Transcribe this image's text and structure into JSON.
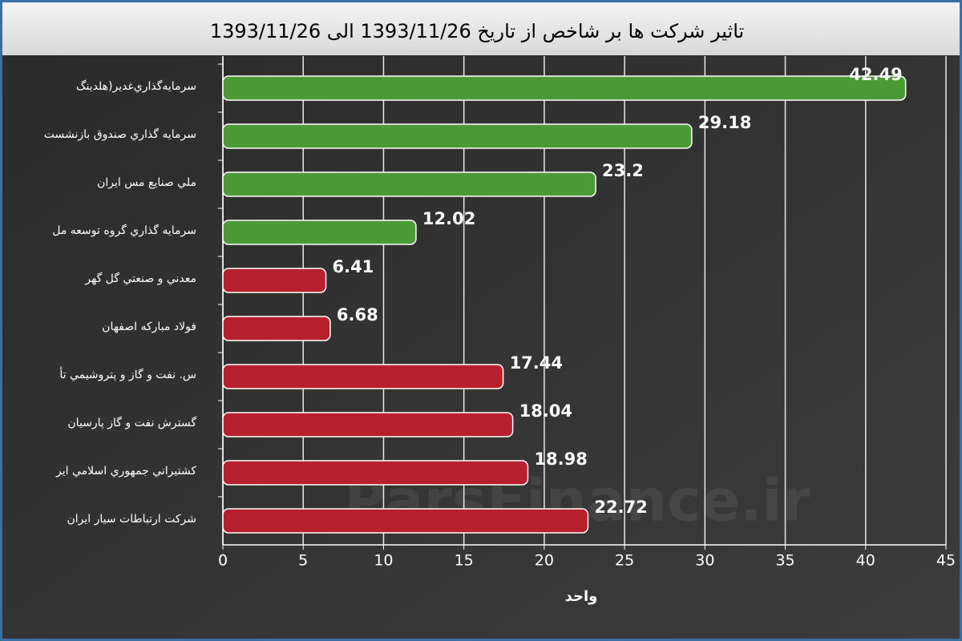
{
  "chart_data": {
    "type": "bar",
    "orientation": "horizontal",
    "title": "تاثیر شرکت ها بر شاخص از تاریخ 1393/11/26 الی 1393/11/26",
    "x_label": "واحد",
    "watermark": "ParsFinance.ir",
    "categories": [
      "سرمایه‌گذاري‌غدیر(هلدینگ",
      "سرمايه گذاري صندوق بازنشست",
      "ملي صنايع مس ايران",
      "سرمايه گذاري گروه توسعه مل",
      "معدني و صنعتي گل گهر",
      "فولاد مباركه اصفهان",
      "س. نفت و گاز و پتروشيمي تأ",
      "گسترش نفت و گاز پارسيان",
      "كشتيراني جمهوري اسلامي اير",
      "شركت ارتباطات سيار ايران"
    ],
    "values": [
      42.49,
      29.18,
      23.2,
      12.02,
      6.41,
      6.68,
      17.44,
      18.04,
      18.98,
      22.72
    ],
    "colors": [
      "#4a9a36",
      "#4a9a36",
      "#4a9a36",
      "#4a9a36",
      "#b8202e",
      "#b8202e",
      "#b8202e",
      "#b8202e",
      "#b8202e",
      "#b8202e"
    ],
    "xlim": [
      0,
      45
    ],
    "xticks": [
      0,
      5,
      10,
      15,
      20,
      25,
      30,
      35,
      40,
      45
    ],
    "grid": true
  }
}
